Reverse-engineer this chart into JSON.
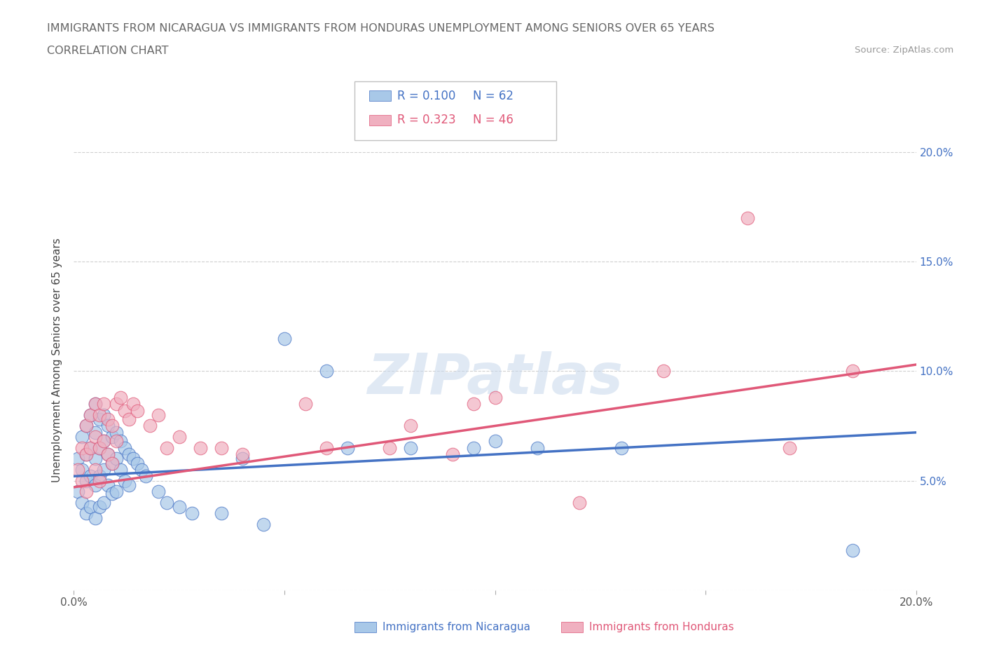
{
  "title_line1": "IMMIGRANTS FROM NICARAGUA VS IMMIGRANTS FROM HONDURAS UNEMPLOYMENT AMONG SENIORS OVER 65 YEARS",
  "title_line2": "CORRELATION CHART",
  "source_text": "Source: ZipAtlas.com",
  "ylabel": "Unemployment Among Seniors over 65 years",
  "xlim": [
    0.0,
    0.2
  ],
  "ylim": [
    0.0,
    0.21
  ],
  "ytick_vals": [
    0.0,
    0.05,
    0.1,
    0.15,
    0.2
  ],
  "xtick_vals": [
    0.0,
    0.05,
    0.1,
    0.15,
    0.2
  ],
  "watermark_text": "ZIPatlas",
  "color_nicaragua": "#a8c8e8",
  "color_honduras": "#f0b0c0",
  "line_color_nicaragua": "#4472c4",
  "line_color_honduras": "#e05878",
  "nicaragua_x": [
    0.001,
    0.001,
    0.002,
    0.002,
    0.002,
    0.003,
    0.003,
    0.003,
    0.003,
    0.004,
    0.004,
    0.004,
    0.004,
    0.005,
    0.005,
    0.005,
    0.005,
    0.005,
    0.006,
    0.006,
    0.006,
    0.006,
    0.007,
    0.007,
    0.007,
    0.007,
    0.008,
    0.008,
    0.008,
    0.009,
    0.009,
    0.009,
    0.01,
    0.01,
    0.01,
    0.011,
    0.011,
    0.012,
    0.012,
    0.013,
    0.013,
    0.014,
    0.015,
    0.016,
    0.017,
    0.02,
    0.022,
    0.025,
    0.028,
    0.035,
    0.04,
    0.045,
    0.05,
    0.06,
    0.065,
    0.08,
    0.095,
    0.1,
    0.11,
    0.13,
    0.185
  ],
  "nicaragua_y": [
    0.06,
    0.045,
    0.07,
    0.055,
    0.04,
    0.075,
    0.062,
    0.05,
    0.035,
    0.08,
    0.065,
    0.052,
    0.038,
    0.085,
    0.072,
    0.06,
    0.048,
    0.033,
    0.078,
    0.065,
    0.052,
    0.038,
    0.08,
    0.068,
    0.055,
    0.04,
    0.075,
    0.062,
    0.048,
    0.07,
    0.058,
    0.044,
    0.072,
    0.06,
    0.045,
    0.068,
    0.055,
    0.065,
    0.05,
    0.062,
    0.048,
    0.06,
    0.058,
    0.055,
    0.052,
    0.045,
    0.04,
    0.038,
    0.035,
    0.035,
    0.06,
    0.03,
    0.115,
    0.1,
    0.065,
    0.065,
    0.065,
    0.068,
    0.065,
    0.065,
    0.018
  ],
  "honduras_x": [
    0.001,
    0.002,
    0.002,
    0.003,
    0.003,
    0.003,
    0.004,
    0.004,
    0.005,
    0.005,
    0.005,
    0.006,
    0.006,
    0.006,
    0.007,
    0.007,
    0.008,
    0.008,
    0.009,
    0.009,
    0.01,
    0.01,
    0.011,
    0.012,
    0.013,
    0.014,
    0.015,
    0.018,
    0.02,
    0.022,
    0.025,
    0.03,
    0.035,
    0.04,
    0.055,
    0.06,
    0.075,
    0.08,
    0.09,
    0.095,
    0.1,
    0.12,
    0.14,
    0.16,
    0.17,
    0.185
  ],
  "honduras_y": [
    0.055,
    0.065,
    0.05,
    0.075,
    0.062,
    0.045,
    0.08,
    0.065,
    0.085,
    0.07,
    0.055,
    0.08,
    0.065,
    0.05,
    0.085,
    0.068,
    0.078,
    0.062,
    0.075,
    0.058,
    0.085,
    0.068,
    0.088,
    0.082,
    0.078,
    0.085,
    0.082,
    0.075,
    0.08,
    0.065,
    0.07,
    0.065,
    0.065,
    0.062,
    0.085,
    0.065,
    0.065,
    0.075,
    0.062,
    0.085,
    0.088,
    0.04,
    0.1,
    0.17,
    0.065,
    0.1
  ],
  "nic_trend_x": [
    0.0,
    0.2
  ],
  "nic_trend_y": [
    0.052,
    0.072
  ],
  "hon_trend_x": [
    0.0,
    0.2
  ],
  "hon_trend_y": [
    0.047,
    0.103
  ],
  "grid_color": "#d0d0d0",
  "background_color": "#ffffff",
  "title_color": "#666666",
  "source_color": "#999999",
  "ylabel_color": "#444444",
  "right_tick_color": "#4472c4"
}
